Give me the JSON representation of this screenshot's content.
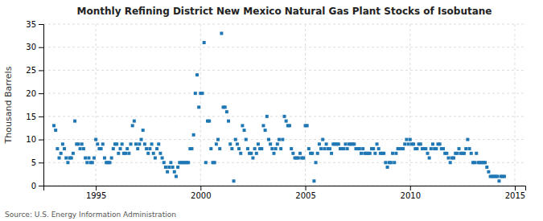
{
  "chart_data": {
    "type": "scatter",
    "title": "Monthly Refining District New Mexico Natural Gas Plant Stocks of Isobutane",
    "ylabel": "Thousand Barrels",
    "annotations": [
      "Source: U.S. Energy Information Administration"
    ],
    "marker": "square",
    "grid": true,
    "xlim": [
      1992.5,
      2015.5
    ],
    "ylim": [
      0,
      35
    ],
    "xticks": [
      1995,
      2000,
      2005,
      2010,
      2015
    ],
    "yticks": [
      0,
      5,
      10,
      15,
      20,
      25,
      30,
      35
    ],
    "x": [
      1993.0,
      1993.083,
      1993.167,
      1993.25,
      1993.333,
      1993.417,
      1993.5,
      1993.583,
      1993.667,
      1993.75,
      1993.833,
      1993.917,
      1994.0,
      1994.083,
      1994.167,
      1994.25,
      1994.333,
      1994.417,
      1994.5,
      1994.583,
      1994.667,
      1994.75,
      1994.833,
      1994.917,
      1995.0,
      1995.083,
      1995.167,
      1995.25,
      1995.333,
      1995.417,
      1995.5,
      1995.583,
      1995.667,
      1995.75,
      1995.833,
      1995.917,
      1996.0,
      1996.083,
      1996.167,
      1996.25,
      1996.333,
      1996.417,
      1996.5,
      1996.583,
      1996.667,
      1996.75,
      1996.833,
      1996.917,
      1997.0,
      1997.083,
      1997.167,
      1997.25,
      1997.333,
      1997.417,
      1997.5,
      1997.583,
      1997.667,
      1997.75,
      1997.833,
      1997.917,
      1998.0,
      1998.083,
      1998.167,
      1998.25,
      1998.333,
      1998.417,
      1998.5,
      1998.583,
      1998.667,
      1998.75,
      1998.833,
      1998.917,
      1999.0,
      1999.083,
      1999.167,
      1999.25,
      1999.333,
      1999.417,
      1999.5,
      1999.583,
      1999.667,
      1999.75,
      1999.833,
      1999.917,
      2000.0,
      2000.083,
      2000.167,
      2000.25,
      2000.333,
      2000.417,
      2000.5,
      2000.583,
      2000.667,
      2000.75,
      2000.833,
      2000.917,
      2001.0,
      2001.083,
      2001.167,
      2001.25,
      2001.333,
      2001.417,
      2001.5,
      2001.583,
      2001.667,
      2001.75,
      2001.833,
      2001.917,
      2002.0,
      2002.083,
      2002.167,
      2002.25,
      2002.333,
      2002.417,
      2002.5,
      2002.583,
      2002.667,
      2002.75,
      2002.833,
      2002.917,
      2003.0,
      2003.083,
      2003.167,
      2003.25,
      2003.333,
      2003.417,
      2003.5,
      2003.583,
      2003.667,
      2003.75,
      2003.833,
      2003.917,
      2004.0,
      2004.083,
      2004.167,
      2004.25,
      2004.333,
      2004.417,
      2004.5,
      2004.583,
      2004.667,
      2004.75,
      2004.833,
      2004.917,
      2005.0,
      2005.083,
      2005.167,
      2005.25,
      2005.333,
      2005.417,
      2005.5,
      2005.583,
      2005.667,
      2005.75,
      2005.833,
      2005.917,
      2006.0,
      2006.083,
      2006.167,
      2006.25,
      2006.333,
      2006.417,
      2006.5,
      2006.583,
      2006.667,
      2006.75,
      2006.833,
      2006.917,
      2007.0,
      2007.083,
      2007.167,
      2007.25,
      2007.333,
      2007.417,
      2007.5,
      2007.583,
      2007.667,
      2007.75,
      2007.833,
      2007.917,
      2008.0,
      2008.083,
      2008.167,
      2008.25,
      2008.333,
      2008.417,
      2008.5,
      2008.583,
      2008.667,
      2008.75,
      2008.833,
      2008.917,
      2009.0,
      2009.083,
      2009.167,
      2009.25,
      2009.333,
      2009.417,
      2009.5,
      2009.583,
      2009.667,
      2009.75,
      2009.833,
      2009.917,
      2010.0,
      2010.083,
      2010.167,
      2010.25,
      2010.333,
      2010.417,
      2010.5,
      2010.583,
      2010.667,
      2010.75,
      2010.833,
      2010.917,
      2011.0,
      2011.083,
      2011.167,
      2011.25,
      2011.333,
      2011.417,
      2011.5,
      2011.583,
      2011.667,
      2011.75,
      2011.833,
      2011.917,
      2012.0,
      2012.083,
      2012.167,
      2012.25,
      2012.333,
      2012.417,
      2012.5,
      2012.583,
      2012.667,
      2012.75,
      2012.833,
      2012.917,
      2013.0,
      2013.083,
      2013.167,
      2013.25,
      2013.333,
      2013.417,
      2013.5,
      2013.583,
      2013.667,
      2013.75,
      2013.833,
      2013.917,
      2014.0,
      2014.083,
      2014.167,
      2014.25,
      2014.333,
      2014.417,
      2014.5
    ],
    "values": [
      13,
      12,
      8,
      6,
      7,
      9,
      8,
      6,
      5,
      6,
      6,
      7,
      14,
      9,
      9,
      8,
      9,
      8,
      6,
      5,
      6,
      5,
      5,
      6,
      10,
      9,
      8,
      8,
      9,
      6,
      5,
      5,
      5,
      6,
      8,
      9,
      9,
      7,
      8,
      9,
      7,
      7,
      8,
      7,
      9,
      13,
      14,
      9,
      8,
      9,
      10,
      12,
      9,
      8,
      7,
      8,
      9,
      7,
      6,
      8,
      9,
      7,
      6,
      5,
      4,
      3,
      4,
      5,
      4,
      3,
      2,
      4,
      5,
      5,
      5,
      5,
      5,
      5,
      8,
      8,
      11,
      20,
      24,
      17,
      20,
      20,
      31,
      5,
      14,
      14,
      8,
      5,
      5,
      9,
      10,
      8,
      33,
      17,
      17,
      16,
      14,
      9,
      8,
      1,
      10,
      9,
      8,
      7,
      13,
      12,
      10,
      8,
      7,
      7,
      6,
      8,
      7,
      9,
      8,
      8,
      13,
      12,
      15,
      10,
      9,
      8,
      7,
      8,
      9,
      10,
      8,
      10,
      15,
      14,
      13,
      13,
      8,
      7,
      6,
      6,
      6,
      7,
      6,
      6,
      13,
      13,
      8,
      7,
      7,
      1,
      5,
      7,
      9,
      8,
      10,
      8,
      9,
      8,
      8,
      7,
      9,
      9,
      9,
      9,
      8,
      8,
      8,
      9,
      8,
      9,
      9,
      9,
      9,
      8,
      8,
      8,
      7,
      8,
      7,
      7,
      7,
      7,
      8,
      8,
      7,
      9,
      8,
      7,
      7,
      7,
      5,
      4,
      5,
      5,
      7,
      5,
      7,
      8,
      8,
      8,
      8,
      9,
      10,
      9,
      10,
      9,
      9,
      8,
      8,
      9,
      9,
      8,
      8,
      8,
      7,
      6,
      8,
      9,
      8,
      8,
      9,
      9,
      8,
      8,
      7,
      7,
      6,
      5,
      6,
      6,
      7,
      7,
      8,
      7,
      7,
      7,
      8,
      10,
      8,
      7,
      5,
      5,
      7,
      5,
      5,
      5,
      5,
      5,
      4,
      3,
      2,
      2,
      2,
      2,
      2,
      1,
      2,
      2,
      2
    ]
  }
}
